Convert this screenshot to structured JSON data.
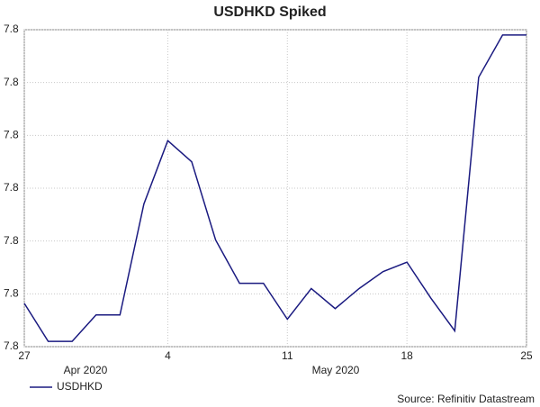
{
  "chart_data": {
    "type": "line",
    "title": "USDHKD Spiked",
    "categories": [
      "27",
      null,
      null,
      null,
      null,
      null,
      "4",
      null,
      null,
      null,
      null,
      "11",
      null,
      null,
      null,
      null,
      "18",
      null,
      null,
      null,
      null,
      "25"
    ],
    "period_labels": [
      "Apr 2020",
      "May 2020"
    ],
    "series": [
      {
        "name": "USDHKD",
        "color": "#1a1a80",
        "values": [
          7.75041,
          7.75005,
          7.75005,
          7.7503,
          7.7503,
          7.75135,
          7.75195,
          7.75175,
          7.75101,
          7.7506,
          7.7506,
          7.75026,
          7.75055,
          7.75036,
          7.75055,
          7.75071,
          7.7508,
          7.75046,
          7.75015,
          7.75255,
          7.75295,
          7.75295
        ]
      }
    ],
    "ylim": [
      7.75,
      7.753
    ],
    "yticks": [
      {
        "value": 7.75,
        "label": "7.8"
      },
      {
        "value": 7.7505,
        "label": "7.8"
      },
      {
        "value": 7.751,
        "label": "7.8"
      },
      {
        "value": 7.7515,
        "label": "7.8"
      },
      {
        "value": 7.752,
        "label": "7.8"
      },
      {
        "value": 7.7525,
        "label": "7.8"
      },
      {
        "value": 7.753,
        "label": "7.8"
      }
    ],
    "grid": true,
    "source": "Source: Refinitiv Datastream"
  }
}
